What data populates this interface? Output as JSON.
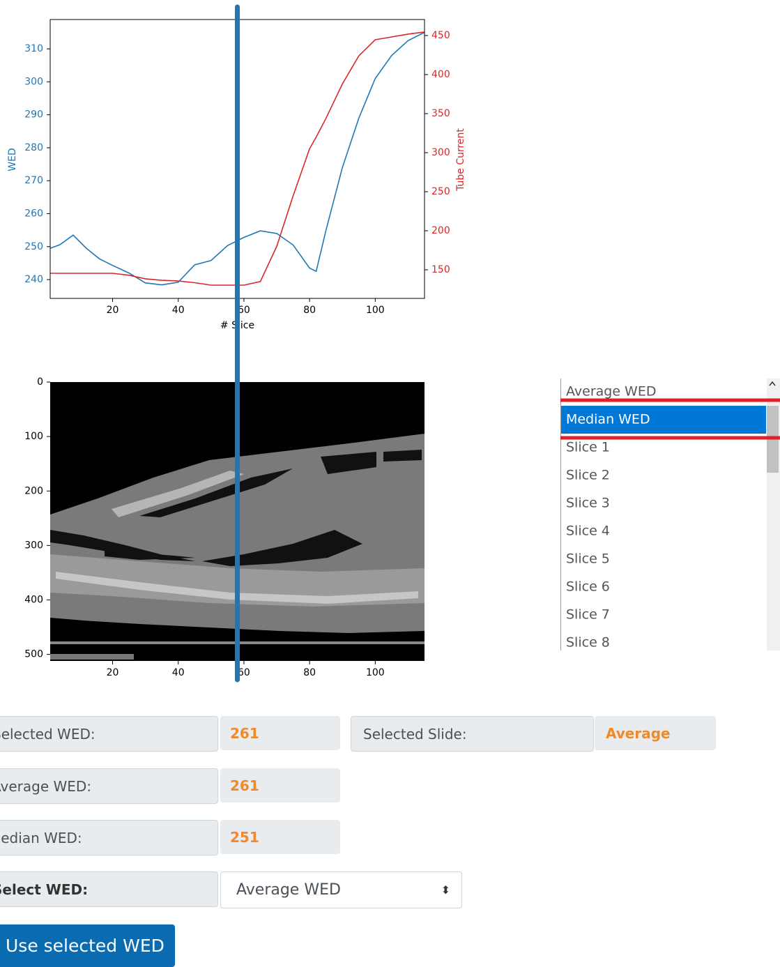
{
  "chart_data": [
    {
      "type": "line",
      "x_label": "# Slice",
      "y_label": "WED",
      "y2_label": "Tube Current",
      "x": [
        1,
        4,
        8,
        12,
        16,
        20,
        25,
        30,
        35,
        40,
        45,
        50,
        55,
        60,
        65,
        70,
        75,
        80,
        82,
        85,
        90,
        95,
        100,
        105,
        110,
        115
      ],
      "series": [
        {
          "color": "#1f77b4",
          "values": [
            249.5,
            250.6,
            253.5,
            249.5,
            246.3,
            244.3,
            242,
            239,
            238.4,
            239.2,
            244.5,
            245.8,
            250.3,
            252.8,
            254.8,
            254,
            250.5,
            243.5,
            242.5,
            255,
            274,
            289,
            301,
            308,
            312.5,
            315
          ]
        },
        {
          "color": "#d62728",
          "axis": "y2",
          "values": [
            145.5,
            145.5,
            145.5,
            145.5,
            145.5,
            145.5,
            143,
            138.5,
            136.5,
            135.7,
            133.5,
            130.4,
            130.4,
            130.4,
            135,
            180,
            245,
            305,
            320,
            344,
            388,
            424,
            444.6,
            448.2,
            451.8,
            454.5
          ]
        }
      ],
      "xlim": [
        1,
        115
      ],
      "ylim": [
        234.3,
        318.9
      ],
      "y2lim": [
        113.4,
        470.5
      ],
      "xticks": [
        20,
        40,
        60,
        80,
        100
      ],
      "yticks": [
        240,
        250,
        260,
        270,
        280,
        290,
        300,
        310
      ],
      "y2ticks": [
        150,
        200,
        250,
        300,
        350,
        400,
        450
      ],
      "marker_x": 58,
      "marker_color": "#1f77b4"
    },
    {
      "type": "image",
      "xlim": [
        1,
        115
      ],
      "ylim": [
        0,
        512
      ],
      "y_inverted": true,
      "xticks": [
        20,
        40,
        60,
        80,
        100
      ],
      "yticks": [
        0,
        100,
        200,
        300,
        400,
        500
      ]
    }
  ],
  "listbox": {
    "items": [
      "Average WED",
      "Median WED",
      "Slice 1",
      "Slice 2",
      "Slice 3",
      "Slice 4",
      "Slice 5",
      "Slice 6",
      "Slice 7",
      "Slice 8"
    ],
    "selected": 1
  },
  "form": {
    "selected_wed": {
      "label": "Selected WED:",
      "value": 261
    },
    "selected_slide": {
      "label": "Selected Slide:",
      "value": "Average"
    },
    "average_wed": {
      "label": "Average WED:",
      "value": 261
    },
    "median_wed": {
      "label": "Median WED:",
      "value": 251
    },
    "select_wed": {
      "label": "Select WED:",
      "value": "Average WED"
    },
    "button": "Use selected WED"
  }
}
